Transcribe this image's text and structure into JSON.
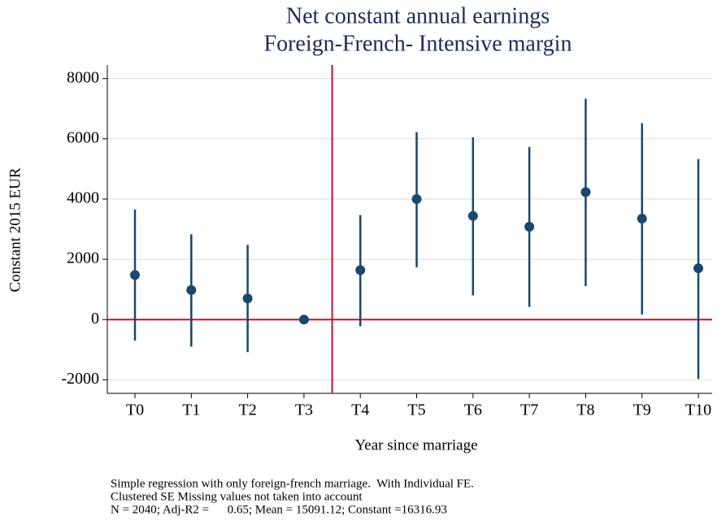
{
  "chart_data": {
    "type": "errorbar",
    "title": [
      "Net constant annual earnings",
      "Foreign-French- Intensive margin"
    ],
    "x_label": "Year since marriage",
    "y_label": "Constant 2015 EUR",
    "categories": [
      "T0",
      "T1",
      "T2",
      "T3",
      "T4",
      "T5",
      "T6",
      "T7",
      "T8",
      "T9",
      "T10"
    ],
    "values": [
      1480,
      980,
      700,
      0,
      1640,
      4000,
      3440,
      3080,
      4230,
      3350,
      1700
    ],
    "lower": [
      -700,
      -900,
      -1080,
      null,
      -220,
      1730,
      800,
      420,
      1110,
      170,
      -1970
    ],
    "upper": [
      3650,
      2830,
      2480,
      null,
      3470,
      6220,
      6050,
      5730,
      7330,
      6520,
      5330
    ],
    "color": "#1a476f",
    "reference_color": "#c8102e",
    "hline": 0,
    "vline": 3.5,
    "ylim": [
      -2450,
      8450
    ],
    "yticks": [
      -2000,
      0,
      2000,
      4000,
      6000,
      8000
    ],
    "grid": true,
    "notes": [
      "Simple regression with only foreign-french marriage.  With Individual FE.",
      "Clustered SE Missing values not taken into account",
      "N = 2040; Adj-R2 =      0.65; Mean = 15091.12; Constant =16316.93"
    ]
  }
}
